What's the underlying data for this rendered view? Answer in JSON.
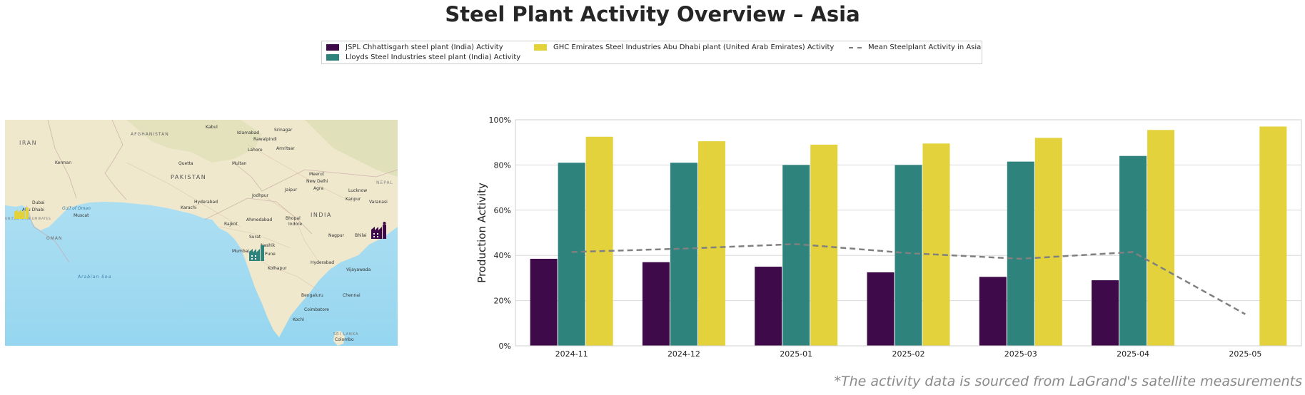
{
  "title": "Steel Plant Activity Overview – Asia",
  "legend": {
    "items": [
      {
        "label": "JSPL Chhattisgarh steel plant (India) Activity",
        "color": "#3f0a4a",
        "kind": "bar"
      },
      {
        "label": "Lloyds Steel Industries steel plant (India) Activity",
        "color": "#2e837d",
        "kind": "bar"
      },
      {
        "label": "GHC Emirates Steel Industries Abu Dhabi plant (United Arab Emirates) Activity",
        "color": "#e3d23b",
        "kind": "bar"
      },
      {
        "label": "Mean Steelplant Activity in Asia",
        "color": "#808080",
        "kind": "dashed-line"
      }
    ]
  },
  "map": {
    "labels": [
      {
        "text": "Kabul"
      },
      {
        "text": "AFGHANISTAN"
      },
      {
        "text": "Islamabad"
      },
      {
        "text": "Srinagar"
      },
      {
        "text": "Rawalpindi"
      },
      {
        "text": "IRAN"
      },
      {
        "text": "Lahore"
      },
      {
        "text": "Amritsar"
      },
      {
        "text": "Kerman"
      },
      {
        "text": "Quetta"
      },
      {
        "text": "Multan"
      },
      {
        "text": "PAKISTAN"
      },
      {
        "text": "Meerut"
      },
      {
        "text": "New Delhi"
      },
      {
        "text": "NEPAL"
      },
      {
        "text": "Jaipur"
      },
      {
        "text": "Agra"
      },
      {
        "text": "Lucknow"
      },
      {
        "text": "Jodhpur"
      },
      {
        "text": "Kanpur"
      },
      {
        "text": "Varanasi"
      },
      {
        "text": "Hyderabad"
      },
      {
        "text": "Karachi"
      },
      {
        "text": "Dubai"
      },
      {
        "text": "Abu Dhabi"
      },
      {
        "text": "Gulf of Oman"
      },
      {
        "text": "Muscat"
      },
      {
        "text": "Ahmedabad"
      },
      {
        "text": "Bhopal"
      },
      {
        "text": "INDIA"
      },
      {
        "text": "Indore"
      },
      {
        "text": "Rajkot"
      },
      {
        "text": "OMAN"
      },
      {
        "text": "Surat"
      },
      {
        "text": "Nagpur"
      },
      {
        "text": "Bhilai"
      },
      {
        "text": "Nashik"
      },
      {
        "text": "Mumbai"
      },
      {
        "text": "Pune"
      },
      {
        "text": "Hyderabad"
      },
      {
        "text": "Arabian Sea"
      },
      {
        "text": "Kolhapur"
      },
      {
        "text": "Vijayawada"
      },
      {
        "text": "Bengaluru"
      },
      {
        "text": "Chennai"
      },
      {
        "text": "Coimbatore"
      },
      {
        "text": "Kochi"
      },
      {
        "text": "SRI LANKA"
      },
      {
        "text": "Colombo"
      },
      {
        "text": "UNITED ARAB EMIRATES"
      }
    ],
    "markers": [
      {
        "plant": "GHC Emirates Steel Industries Abu Dhabi plant",
        "color": "#e3d23b",
        "icon": "factory-icon"
      },
      {
        "plant": "Lloyds Steel Industries steel plant",
        "color": "#2e837d",
        "icon": "factory-icon"
      },
      {
        "plant": "JSPL Chhattisgarh steel plant",
        "color": "#3f0a4a",
        "icon": "factory-icon"
      }
    ]
  },
  "chart_data": {
    "type": "bar",
    "ylabel": "Production Activity",
    "xlabel": "",
    "ylim": [
      0,
      100
    ],
    "yticks": [
      "0%",
      "20%",
      "40%",
      "60%",
      "80%",
      "100%"
    ],
    "grid": true,
    "categories": [
      "2024-11",
      "2024-12",
      "2025-01",
      "2025-02",
      "2025-03",
      "2025-04",
      "2025-05"
    ],
    "series": [
      {
        "name": "JSPL Chhattisgarh steel plant (India) Activity",
        "color": "#3f0a4a",
        "values": [
          38.5,
          37,
          35,
          32.5,
          30.5,
          29,
          null
        ]
      },
      {
        "name": "Lloyds Steel Industries steel plant (India) Activity",
        "color": "#2e837d",
        "values": [
          81,
          81,
          80,
          80,
          81.5,
          84,
          null
        ]
      },
      {
        "name": "GHC Emirates Steel Industries Abu Dhabi plant (United Arab Emirates) Activity",
        "color": "#e3d23b",
        "values": [
          92.5,
          90.5,
          89,
          89.5,
          92,
          95.5,
          97
        ]
      }
    ],
    "mean_line": {
      "name": "Mean Steelplant Activity in Asia",
      "color": "#808080",
      "values": [
        41.5,
        43,
        45,
        41,
        38.5,
        41.5,
        14
      ]
    }
  },
  "footnote": "*The activity data is sourced from LaGrand's satellite measurements"
}
